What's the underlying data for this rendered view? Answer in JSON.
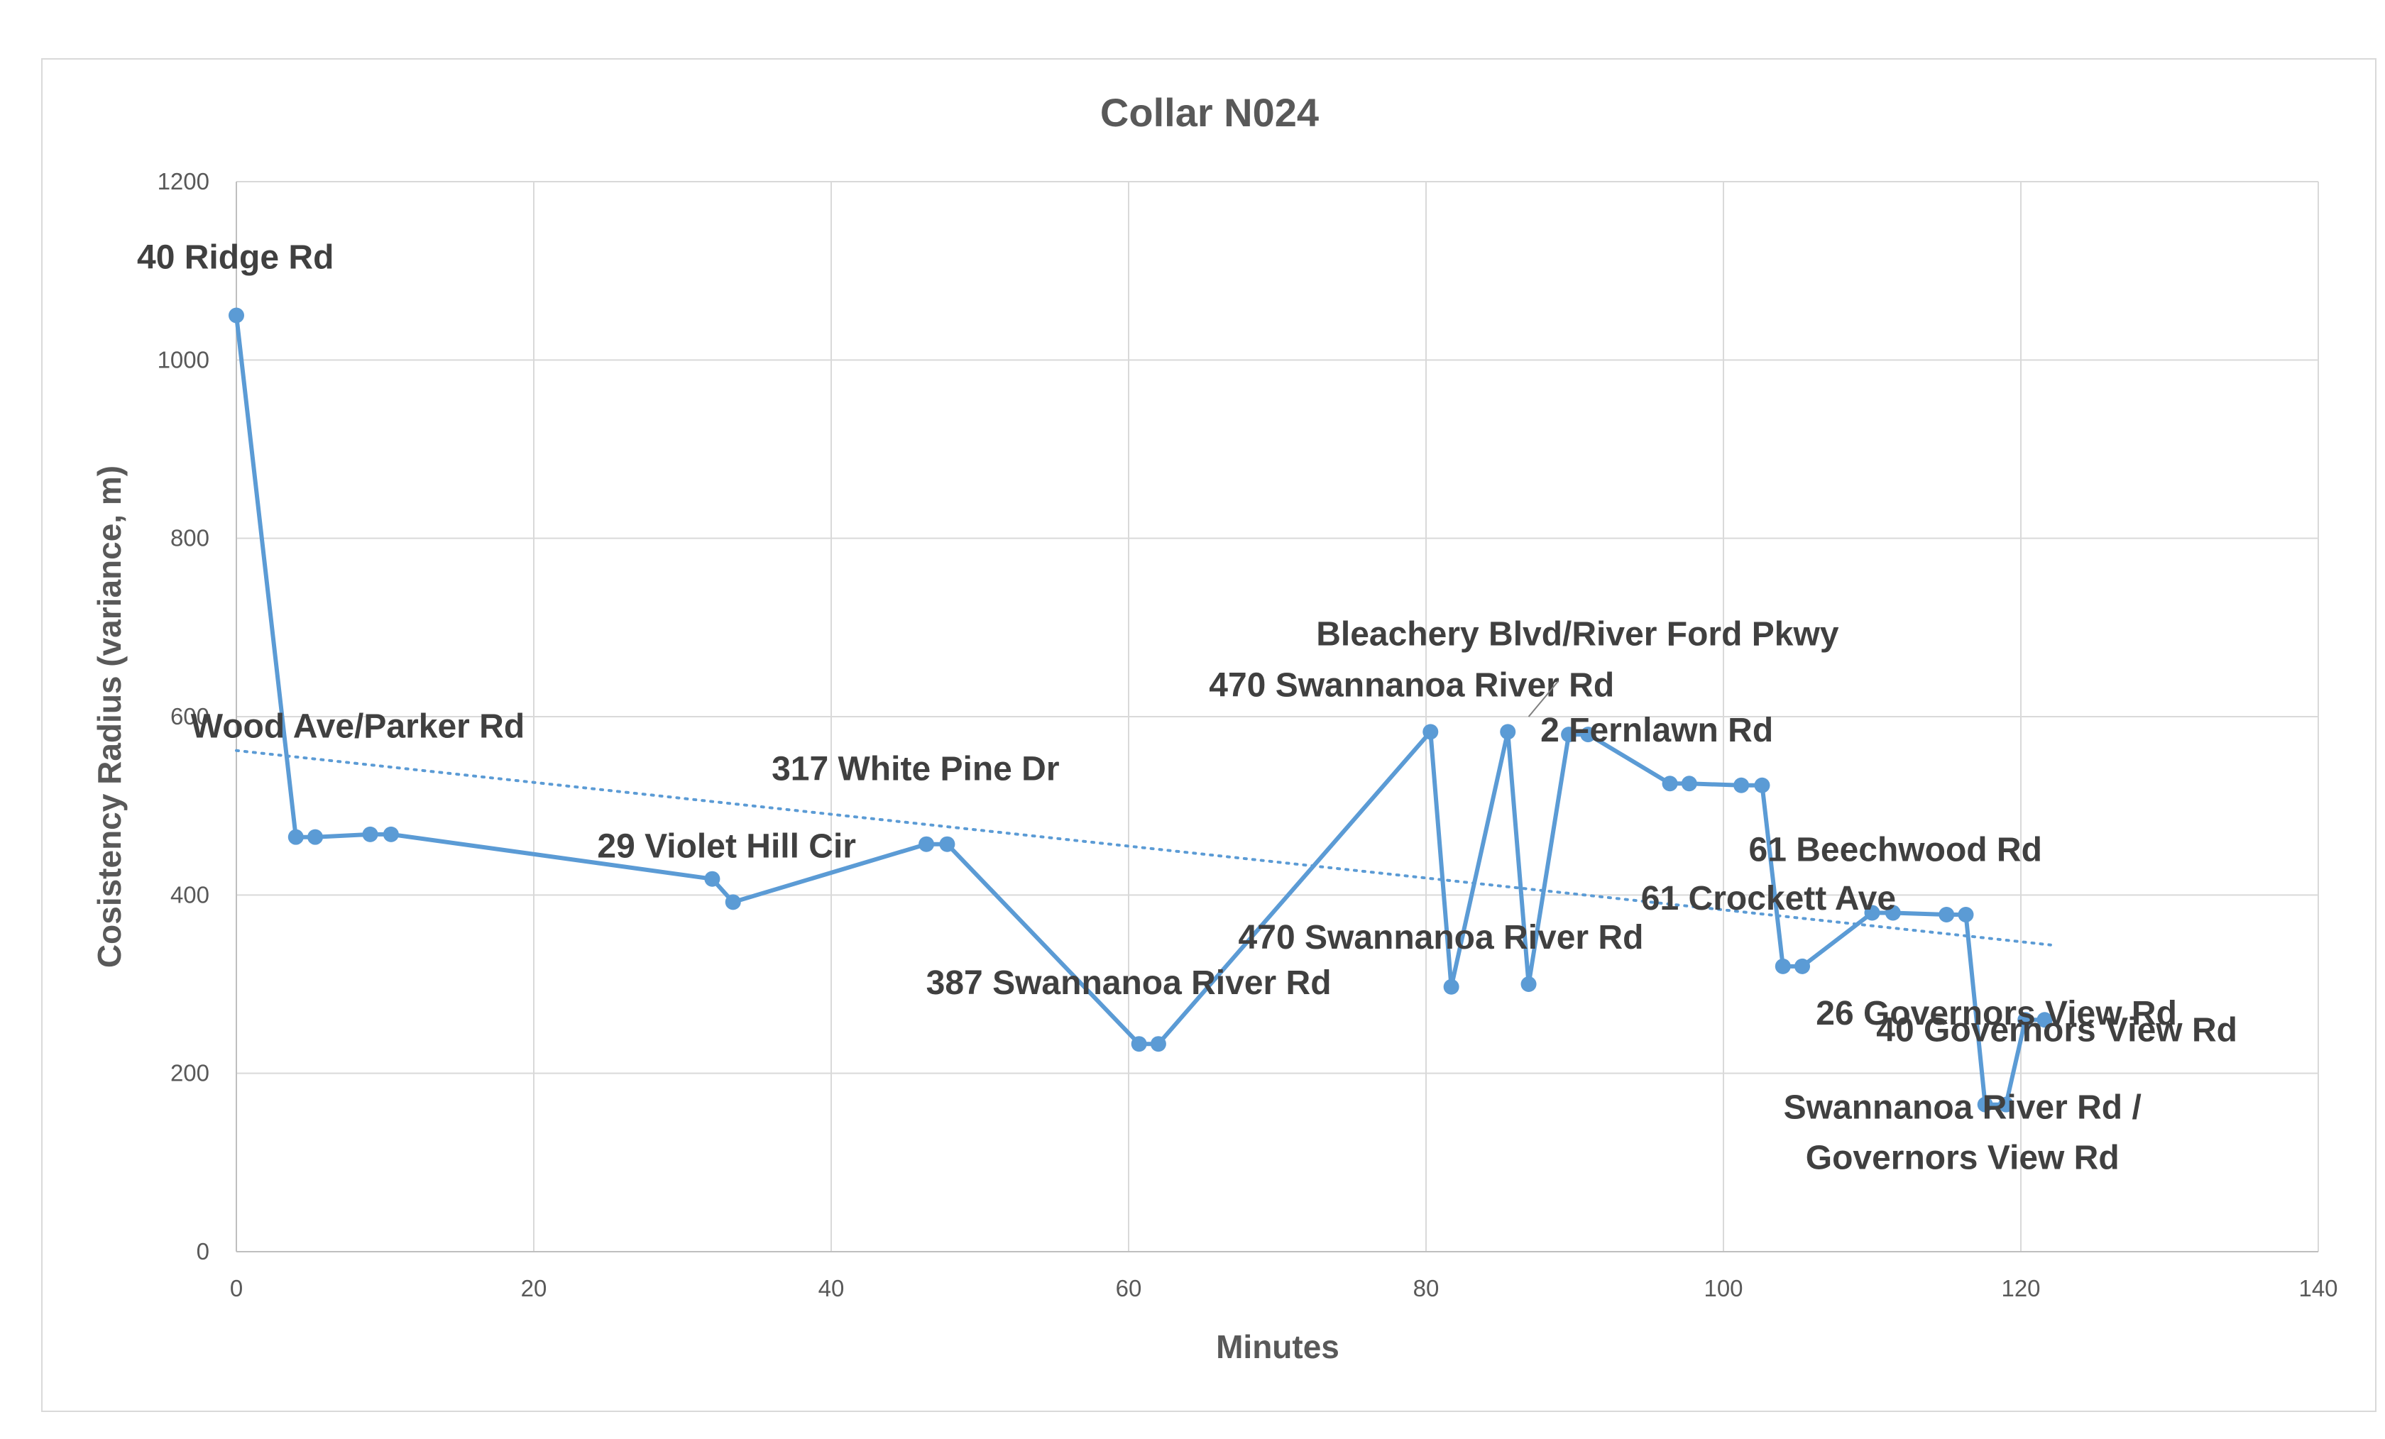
{
  "chart_data": {
    "type": "line",
    "title": "Collar N024",
    "xlabel": "Minutes",
    "ylabel": "Cosistency Radius (variance, m)",
    "xlim": [
      0,
      140
    ],
    "ylim": [
      0,
      1200
    ],
    "x_ticks": [
      "0",
      "20",
      "40",
      "60",
      "80",
      "100",
      "120",
      "140"
    ],
    "y_ticks": [
      "0",
      "200",
      "400",
      "600",
      "800",
      "1000",
      "1200"
    ],
    "grid": true,
    "legend": "none",
    "series": [
      {
        "color": "#5B9BD5",
        "markers": true,
        "points": [
          [
            0,
            1050
          ],
          [
            4,
            465
          ],
          [
            5.3,
            465
          ],
          [
            9,
            468
          ],
          [
            10.4,
            468
          ],
          [
            32,
            418
          ],
          [
            33.4,
            392
          ],
          [
            46.4,
            457
          ],
          [
            47.8,
            457
          ],
          [
            60.7,
            233
          ],
          [
            62,
            233
          ],
          [
            80.3,
            583
          ],
          [
            81.7,
            297
          ],
          [
            85.5,
            583
          ],
          [
            86.9,
            300
          ],
          [
            89.6,
            580
          ],
          [
            90.9,
            580
          ],
          [
            96.4,
            525
          ],
          [
            97.7,
            525
          ],
          [
            101.2,
            523
          ],
          [
            102.6,
            523
          ],
          [
            104,
            320
          ],
          [
            105.3,
            320
          ],
          [
            110,
            380
          ],
          [
            111.4,
            380
          ],
          [
            115,
            378
          ],
          [
            116.3,
            378
          ],
          [
            117.6,
            165
          ],
          [
            119,
            165
          ],
          [
            120.3,
            260
          ],
          [
            121.6,
            260
          ]
        ]
      }
    ],
    "trendline": {
      "type": "linear",
      "style": "dotted",
      "color": "#5B9BD5",
      "x_range": [
        0,
        122
      ],
      "y_range": [
        562,
        344
      ]
    },
    "annotations": [
      {
        "text": "40 Ridge Rd",
        "x": 0,
        "y": 1050
      },
      {
        "text": "Wood Ave/Parker Rd",
        "x": 4,
        "y": 465
      },
      {
        "text": "29 Violet Hill Cir",
        "x": 32,
        "y": 418
      },
      {
        "text": "317 White Pine Dr",
        "x": 46.4,
        "y": 457
      },
      {
        "text": "387 Swannanoa River Rd",
        "x": 60.7,
        "y": 233
      },
      {
        "text": "470 Swannanoa River Rd",
        "x": 80.3,
        "y": 583
      },
      {
        "text": "Bleachery Blvd/River Ford Pkwy",
        "x": 85.5,
        "y": 583
      },
      {
        "text": "470 Swannanoa River Rd",
        "x": 86.9,
        "y": 300
      },
      {
        "text": "2 Fernlawn Rd",
        "x": 89.6,
        "y": 580
      },
      {
        "text": "61 Beechwood Rd",
        "x": 110,
        "y": 380
      },
      {
        "text": "61 Crockett Ave",
        "x": 104,
        "y": 320
      },
      {
        "text": "26 Governors View Rd",
        "x": 115,
        "y": 378
      },
      {
        "text": "40 Governors View Rd",
        "x": 120.3,
        "y": 260
      },
      {
        "text": "Swannanoa River Rd /",
        "x": 117.6,
        "y": 165
      },
      {
        "text": "Governors View Rd",
        "x": 117.6,
        "y": 165
      }
    ]
  }
}
